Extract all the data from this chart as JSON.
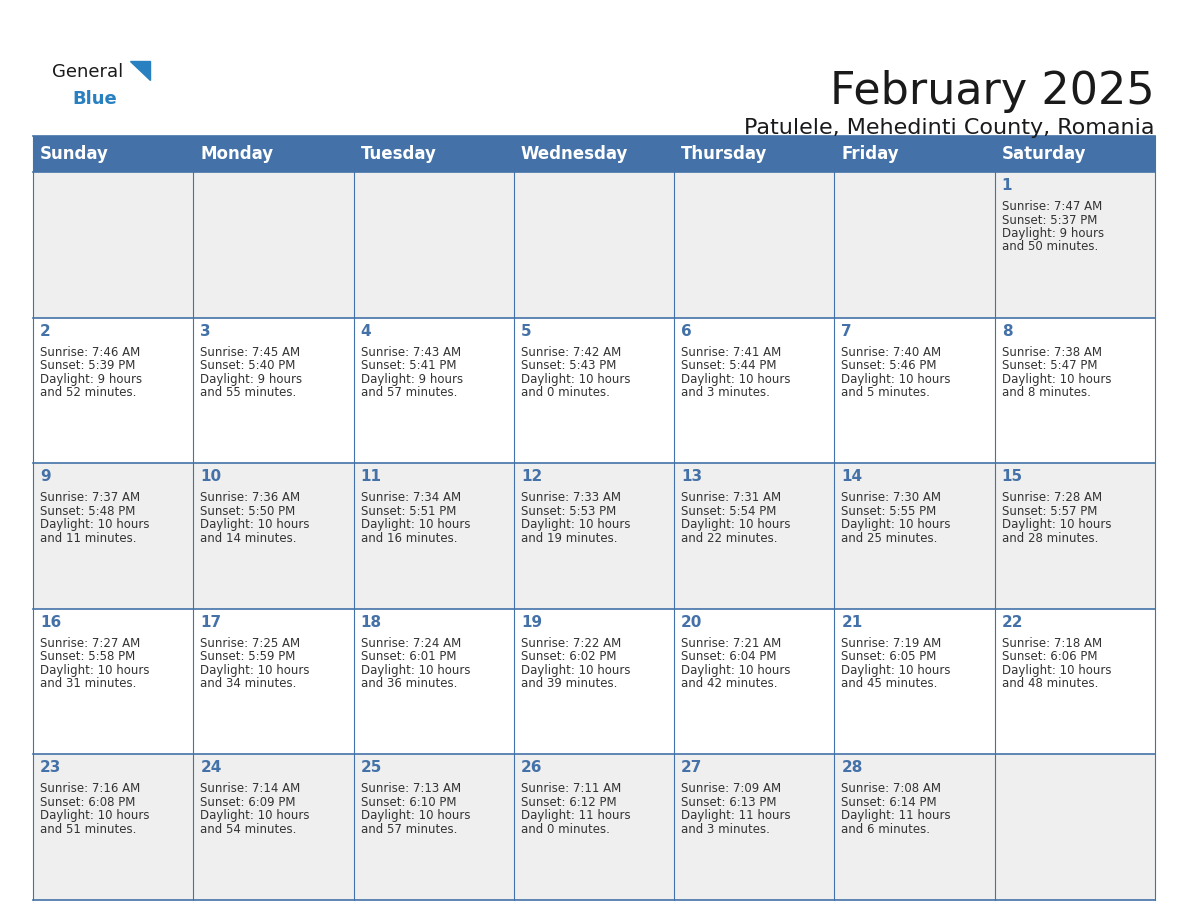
{
  "title": "February 2025",
  "subtitle": "Patulele, Mehedinti County, Romania",
  "days_of_week": [
    "Sunday",
    "Monday",
    "Tuesday",
    "Wednesday",
    "Thursday",
    "Friday",
    "Saturday"
  ],
  "header_bg": "#4472A8",
  "header_text": "#FFFFFF",
  "row_bg_odd": "#EFEFEF",
  "row_bg_even": "#FFFFFF",
  "border_color": "#4472A8",
  "day_num_color": "#4472A8",
  "text_color": "#333333",
  "calendar_data": [
    [
      null,
      null,
      null,
      null,
      null,
      null,
      {
        "day": "1",
        "sunrise": "7:47 AM",
        "sunset": "5:37 PM",
        "daylight_line1": "Daylight: 9 hours",
        "daylight_line2": "and 50 minutes."
      }
    ],
    [
      {
        "day": "2",
        "sunrise": "7:46 AM",
        "sunset": "5:39 PM",
        "daylight_line1": "Daylight: 9 hours",
        "daylight_line2": "and 52 minutes."
      },
      {
        "day": "3",
        "sunrise": "7:45 AM",
        "sunset": "5:40 PM",
        "daylight_line1": "Daylight: 9 hours",
        "daylight_line2": "and 55 minutes."
      },
      {
        "day": "4",
        "sunrise": "7:43 AM",
        "sunset": "5:41 PM",
        "daylight_line1": "Daylight: 9 hours",
        "daylight_line2": "and 57 minutes."
      },
      {
        "day": "5",
        "sunrise": "7:42 AM",
        "sunset": "5:43 PM",
        "daylight_line1": "Daylight: 10 hours",
        "daylight_line2": "and 0 minutes."
      },
      {
        "day": "6",
        "sunrise": "7:41 AM",
        "sunset": "5:44 PM",
        "daylight_line1": "Daylight: 10 hours",
        "daylight_line2": "and 3 minutes."
      },
      {
        "day": "7",
        "sunrise": "7:40 AM",
        "sunset": "5:46 PM",
        "daylight_line1": "Daylight: 10 hours",
        "daylight_line2": "and 5 minutes."
      },
      {
        "day": "8",
        "sunrise": "7:38 AM",
        "sunset": "5:47 PM",
        "daylight_line1": "Daylight: 10 hours",
        "daylight_line2": "and 8 minutes."
      }
    ],
    [
      {
        "day": "9",
        "sunrise": "7:37 AM",
        "sunset": "5:48 PM",
        "daylight_line1": "Daylight: 10 hours",
        "daylight_line2": "and 11 minutes."
      },
      {
        "day": "10",
        "sunrise": "7:36 AM",
        "sunset": "5:50 PM",
        "daylight_line1": "Daylight: 10 hours",
        "daylight_line2": "and 14 minutes."
      },
      {
        "day": "11",
        "sunrise": "7:34 AM",
        "sunset": "5:51 PM",
        "daylight_line1": "Daylight: 10 hours",
        "daylight_line2": "and 16 minutes."
      },
      {
        "day": "12",
        "sunrise": "7:33 AM",
        "sunset": "5:53 PM",
        "daylight_line1": "Daylight: 10 hours",
        "daylight_line2": "and 19 minutes."
      },
      {
        "day": "13",
        "sunrise": "7:31 AM",
        "sunset": "5:54 PM",
        "daylight_line1": "Daylight: 10 hours",
        "daylight_line2": "and 22 minutes."
      },
      {
        "day": "14",
        "sunrise": "7:30 AM",
        "sunset": "5:55 PM",
        "daylight_line1": "Daylight: 10 hours",
        "daylight_line2": "and 25 minutes."
      },
      {
        "day": "15",
        "sunrise": "7:28 AM",
        "sunset": "5:57 PM",
        "daylight_line1": "Daylight: 10 hours",
        "daylight_line2": "and 28 minutes."
      }
    ],
    [
      {
        "day": "16",
        "sunrise": "7:27 AM",
        "sunset": "5:58 PM",
        "daylight_line1": "Daylight: 10 hours",
        "daylight_line2": "and 31 minutes."
      },
      {
        "day": "17",
        "sunrise": "7:25 AM",
        "sunset": "5:59 PM",
        "daylight_line1": "Daylight: 10 hours",
        "daylight_line2": "and 34 minutes."
      },
      {
        "day": "18",
        "sunrise": "7:24 AM",
        "sunset": "6:01 PM",
        "daylight_line1": "Daylight: 10 hours",
        "daylight_line2": "and 36 minutes."
      },
      {
        "day": "19",
        "sunrise": "7:22 AM",
        "sunset": "6:02 PM",
        "daylight_line1": "Daylight: 10 hours",
        "daylight_line2": "and 39 minutes."
      },
      {
        "day": "20",
        "sunrise": "7:21 AM",
        "sunset": "6:04 PM",
        "daylight_line1": "Daylight: 10 hours",
        "daylight_line2": "and 42 minutes."
      },
      {
        "day": "21",
        "sunrise": "7:19 AM",
        "sunset": "6:05 PM",
        "daylight_line1": "Daylight: 10 hours",
        "daylight_line2": "and 45 minutes."
      },
      {
        "day": "22",
        "sunrise": "7:18 AM",
        "sunset": "6:06 PM",
        "daylight_line1": "Daylight: 10 hours",
        "daylight_line2": "and 48 minutes."
      }
    ],
    [
      {
        "day": "23",
        "sunrise": "7:16 AM",
        "sunset": "6:08 PM",
        "daylight_line1": "Daylight: 10 hours",
        "daylight_line2": "and 51 minutes."
      },
      {
        "day": "24",
        "sunrise": "7:14 AM",
        "sunset": "6:09 PM",
        "daylight_line1": "Daylight: 10 hours",
        "daylight_line2": "and 54 minutes."
      },
      {
        "day": "25",
        "sunrise": "7:13 AM",
        "sunset": "6:10 PM",
        "daylight_line1": "Daylight: 10 hours",
        "daylight_line2": "and 57 minutes."
      },
      {
        "day": "26",
        "sunrise": "7:11 AM",
        "sunset": "6:12 PM",
        "daylight_line1": "Daylight: 11 hours",
        "daylight_line2": "and 0 minutes."
      },
      {
        "day": "27",
        "sunrise": "7:09 AM",
        "sunset": "6:13 PM",
        "daylight_line1": "Daylight: 11 hours",
        "daylight_line2": "and 3 minutes."
      },
      {
        "day": "28",
        "sunrise": "7:08 AM",
        "sunset": "6:14 PM",
        "daylight_line1": "Daylight: 11 hours",
        "daylight_line2": "and 6 minutes."
      },
      null
    ]
  ],
  "title_fontsize": 32,
  "subtitle_fontsize": 16,
  "header_fontsize": 12,
  "day_num_fontsize": 11,
  "cell_text_fontsize": 8.5
}
